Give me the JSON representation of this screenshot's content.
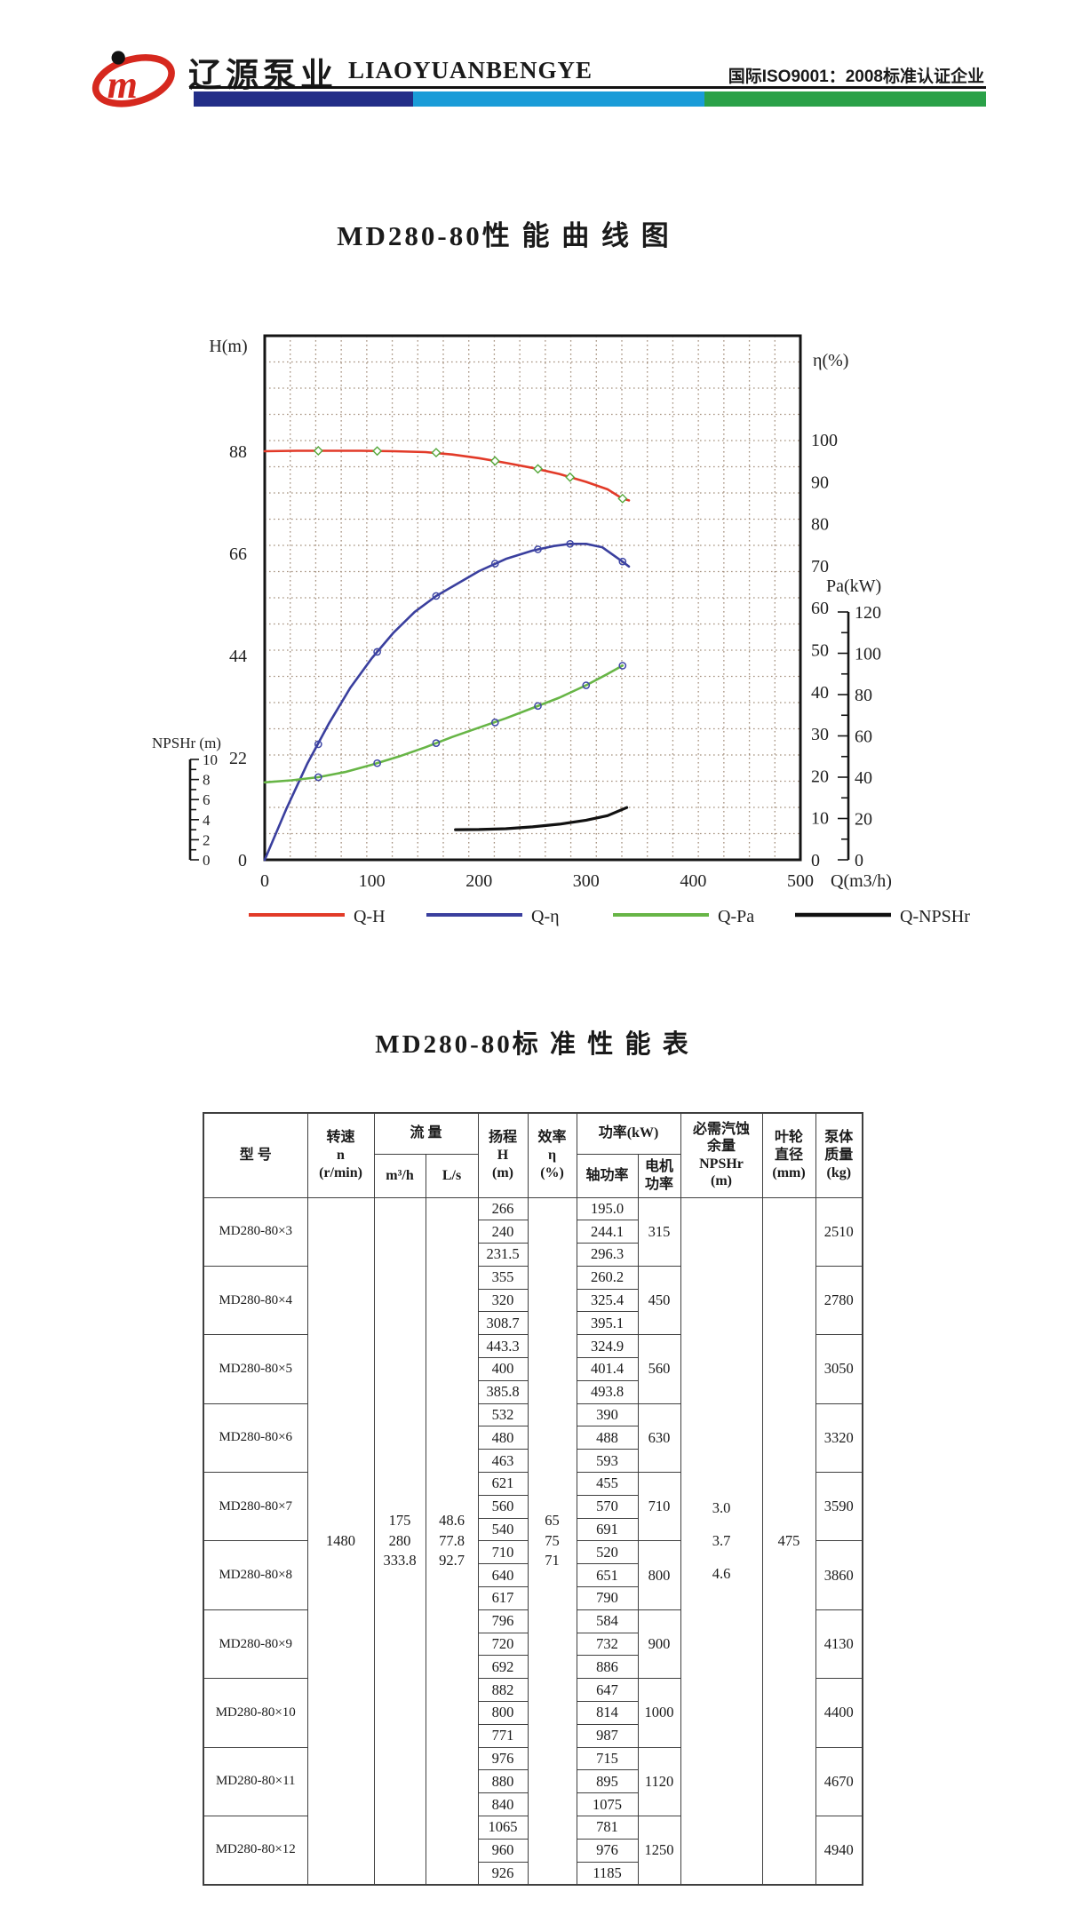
{
  "header": {
    "brand_cn": "辽源泵业",
    "brand_en": "LIAOYUANBENGYE",
    "certification": "国际ISO9001：2008标准认证企业",
    "bar_colors": {
      "navy": "#232e88",
      "cyan": "#1a9cd8",
      "green": "#2aa148"
    },
    "logo": {
      "red": "#d6281e",
      "black": "#111111"
    }
  },
  "chart_data": {
    "type": "line",
    "title": "MD280-80性 能 曲 线 图",
    "grid": "dotted",
    "legend_position": "bottom",
    "x_axis": {
      "label": "Q(m3/h)",
      "range": [
        0,
        500
      ],
      "ticks": [
        0,
        100,
        200,
        300,
        400,
        500
      ]
    },
    "y_axes": [
      {
        "id": "H",
        "label": "H(m)",
        "ticks": [
          0,
          22,
          44,
          66,
          88
        ],
        "range": [
          0,
          113
        ]
      },
      {
        "id": "eta",
        "label": "η(%)",
        "ticks": [
          0,
          10,
          20,
          30,
          40,
          50,
          60,
          70,
          80,
          90,
          100
        ],
        "range": [
          0,
          125
        ]
      },
      {
        "id": "Pa",
        "label": "Pa(kW)",
        "ticks": [
          0,
          20,
          40,
          60,
          80,
          100,
          120
        ],
        "range": [
          0,
          120
        ]
      },
      {
        "id": "NPSHr",
        "label": "NPSHr (m)",
        "ticks": [
          0,
          2,
          4,
          6,
          8,
          10
        ],
        "range": [
          0,
          10
        ]
      }
    ],
    "series": [
      {
        "name": "Q-H",
        "axis": "H",
        "color": "#e23a28",
        "marker": "diamond",
        "points": [
          [
            0,
            88
          ],
          [
            30,
            88.1
          ],
          [
            60,
            88.1
          ],
          [
            90,
            88.1
          ],
          [
            120,
            88
          ],
          [
            150,
            87.8
          ],
          [
            175,
            87.3
          ],
          [
            200,
            86.5
          ],
          [
            225,
            85.5
          ],
          [
            250,
            84.4
          ],
          [
            275,
            83.1
          ],
          [
            300,
            81.4
          ],
          [
            320,
            79.8
          ],
          [
            333.8,
            77.8
          ],
          [
            340,
            77.4
          ]
        ],
        "marker_points": [
          [
            50,
            88.1
          ],
          [
            105,
            88.05
          ],
          [
            160,
            87.7
          ],
          [
            215,
            85.9
          ],
          [
            255,
            84.2
          ],
          [
            285,
            82.4
          ],
          [
            334,
            77.8
          ]
        ]
      },
      {
        "name": "Q-η",
        "axis": "eta",
        "color": "#3a3f9e",
        "marker": "circle",
        "points": [
          [
            0,
            0
          ],
          [
            20,
            12
          ],
          [
            40,
            23
          ],
          [
            60,
            32.5
          ],
          [
            80,
            41
          ],
          [
            100,
            48
          ],
          [
            120,
            54
          ],
          [
            140,
            59
          ],
          [
            160,
            62.8
          ],
          [
            175,
            65
          ],
          [
            200,
            68.7
          ],
          [
            225,
            71.6
          ],
          [
            250,
            73.6
          ],
          [
            270,
            74.7
          ],
          [
            285,
            75.2
          ],
          [
            300,
            75.2
          ],
          [
            315,
            74.4
          ],
          [
            333.8,
            71
          ],
          [
            340,
            69.8
          ]
        ],
        "marker_points": [
          [
            50,
            27.5
          ],
          [
            105,
            49.5
          ],
          [
            160,
            62.8
          ],
          [
            215,
            70.5
          ],
          [
            255,
            73.9
          ],
          [
            285,
            75.2
          ],
          [
            334,
            71
          ]
        ]
      },
      {
        "name": "Q-Pa",
        "axis": "Pa",
        "color": "#67b546",
        "marker": "circle",
        "points": [
          [
            0,
            37.5
          ],
          [
            25,
            38.5
          ],
          [
            50,
            40
          ],
          [
            75,
            42.5
          ],
          [
            100,
            46
          ],
          [
            125,
            50
          ],
          [
            150,
            54.5
          ],
          [
            175,
            59.5
          ],
          [
            200,
            64
          ],
          [
            225,
            68.5
          ],
          [
            250,
            73.5
          ],
          [
            275,
            78.5
          ],
          [
            300,
            84.5
          ],
          [
            320,
            90
          ],
          [
            334,
            94
          ]
        ],
        "marker_points": [
          [
            50,
            40
          ],
          [
            105,
            46.8
          ],
          [
            160,
            56.5
          ],
          [
            215,
            66.5
          ],
          [
            255,
            74.5
          ],
          [
            300,
            84.5
          ],
          [
            334,
            94
          ]
        ]
      },
      {
        "name": "Q-NPSHr",
        "axis": "NPSHr",
        "color": "#111111",
        "marker": "none",
        "points": [
          [
            178,
            3.0
          ],
          [
            200,
            3.02
          ],
          [
            225,
            3.1
          ],
          [
            250,
            3.28
          ],
          [
            275,
            3.55
          ],
          [
            300,
            3.95
          ],
          [
            320,
            4.4
          ],
          [
            338,
            5.2
          ]
        ]
      }
    ]
  },
  "table": {
    "title": "MD280-80标 准 性 能 表",
    "header": {
      "model": "型 号",
      "speed": "转速\nn\n(r/min)",
      "flow": "流 量",
      "flow_m3h": "m³/h",
      "flow_ls": "L/s",
      "head": "扬程\nH\n(m)",
      "eff": "效率\nη\n(%)",
      "power": "功率(kW)",
      "shaft": "轴功率",
      "motor": "电机\n功率",
      "npshr": "必需汽蚀\n余量\nNPSHr\n(m)",
      "impeller": "叶轮\n直径\n(mm)",
      "mass": "泵体\n质量\n(kg)"
    },
    "shared": {
      "speed": "1480",
      "flow_m3h": [
        "175",
        "280",
        "333.8"
      ],
      "flow_ls": [
        "48.6",
        "77.8",
        "92.7"
      ],
      "eff": [
        "65",
        "75",
        "71"
      ],
      "npshr": [
        "3.0",
        "3.7",
        "4.6"
      ],
      "impeller": "475"
    },
    "rows": [
      {
        "model": "MD280-80×3",
        "head": [
          "266",
          "240",
          "231.5"
        ],
        "shaft": [
          "195.0",
          "244.1",
          "296.3"
        ],
        "motor": "315",
        "mass": "2510"
      },
      {
        "model": "MD280-80×4",
        "head": [
          "355",
          "320",
          "308.7"
        ],
        "shaft": [
          "260.2",
          "325.4",
          "395.1"
        ],
        "motor": "450",
        "mass": "2780"
      },
      {
        "model": "MD280-80×5",
        "head": [
          "443.3",
          "400",
          "385.8"
        ],
        "shaft": [
          "324.9",
          "401.4",
          "493.8"
        ],
        "motor": "560",
        "mass": "3050"
      },
      {
        "model": "MD280-80×6",
        "head": [
          "532",
          "480",
          "463"
        ],
        "shaft": [
          "390",
          "488",
          "593"
        ],
        "motor": "630",
        "mass": "3320"
      },
      {
        "model": "MD280-80×7",
        "head": [
          "621",
          "560",
          "540"
        ],
        "shaft": [
          "455",
          "570",
          "691"
        ],
        "motor": "710",
        "mass": "3590"
      },
      {
        "model": "MD280-80×8",
        "head": [
          "710",
          "640",
          "617"
        ],
        "shaft": [
          "520",
          "651",
          "790"
        ],
        "motor": "800",
        "mass": "3860"
      },
      {
        "model": "MD280-80×9",
        "head": [
          "796",
          "720",
          "692"
        ],
        "shaft": [
          "584",
          "732",
          "886"
        ],
        "motor": "900",
        "mass": "4130"
      },
      {
        "model": "MD280-80×10",
        "head": [
          "882",
          "800",
          "771"
        ],
        "shaft": [
          "647",
          "814",
          "987"
        ],
        "motor": "1000",
        "mass": "4400"
      },
      {
        "model": "MD280-80×11",
        "head": [
          "976",
          "880",
          "840"
        ],
        "shaft": [
          "715",
          "895",
          "1075"
        ],
        "motor": "1120",
        "mass": "4670"
      },
      {
        "model": "MD280-80×12",
        "head": [
          "1065",
          "960",
          "926"
        ],
        "shaft": [
          "781",
          "976",
          "1185"
        ],
        "motor": "1250",
        "mass": "4940"
      }
    ]
  }
}
